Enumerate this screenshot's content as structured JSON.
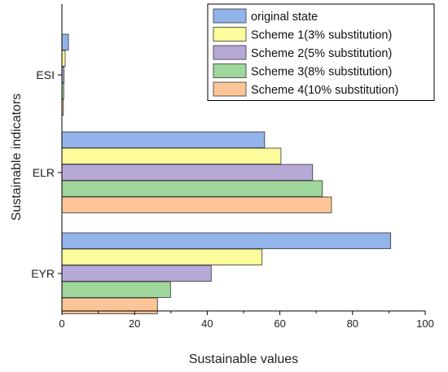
{
  "chart_data": {
    "type": "bar",
    "orientation": "horizontal",
    "title": "",
    "xlabel": "Sustainable values",
    "ylabel": "Sustainable indicators",
    "xlim": [
      0,
      100
    ],
    "xticks": [
      "0",
      "20",
      "40",
      "60",
      "80",
      "100"
    ],
    "categories": [
      "ESI",
      "ELR",
      "EYR"
    ],
    "legend_position": "top-right",
    "grid": false,
    "series": [
      {
        "name": "original state",
        "color": "#93b4ea",
        "values": [
          1.8,
          55.8,
          90.5
        ]
      },
      {
        "name": "Scheme 1(3% substitution)",
        "color": "#fdfc9c",
        "values": [
          0.9,
          60.3,
          55.1
        ]
      },
      {
        "name": "Scheme 2(5% substitution)",
        "color": "#b7a9d6",
        "values": [
          0.6,
          69.0,
          41.1
        ]
      },
      {
        "name": "Scheme 3(8% substitution)",
        "color": "#9ed69b",
        "values": [
          0.5,
          71.7,
          29.9
        ]
      },
      {
        "name": "Scheme 4(10% substitution)",
        "color": "#fbc598",
        "values": [
          0.4,
          74.2,
          26.3
        ]
      }
    ]
  }
}
